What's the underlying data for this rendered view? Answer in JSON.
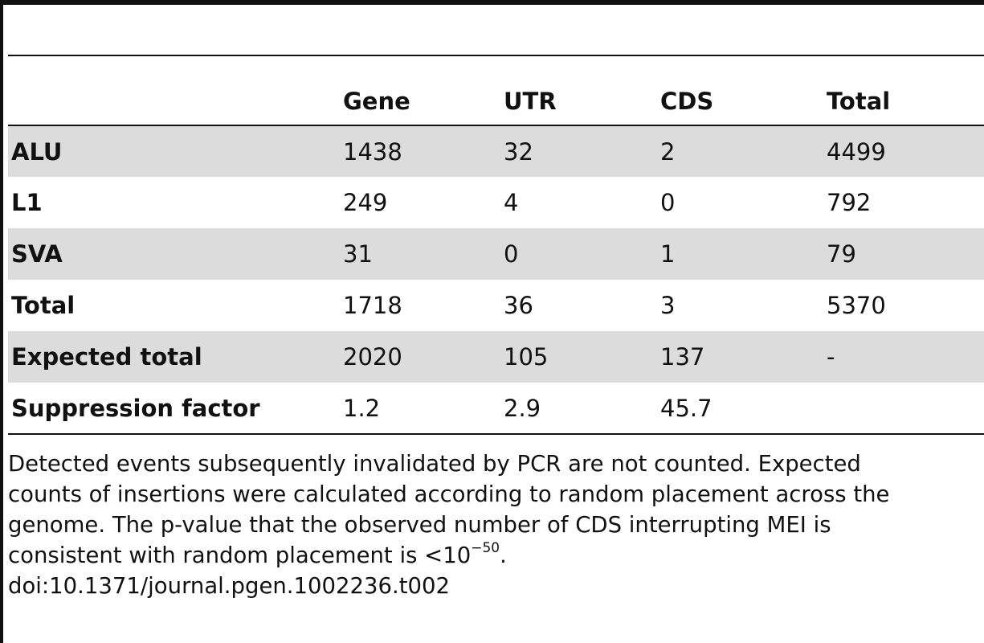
{
  "table": {
    "headers": [
      "",
      "Gene",
      "UTR",
      "CDS",
      "Total"
    ],
    "rows": [
      {
        "label": "ALU",
        "cells": [
          "1438",
          "32",
          "2",
          "4499"
        ]
      },
      {
        "label": "L1",
        "cells": [
          "249",
          "4",
          "0",
          "792"
        ]
      },
      {
        "label": "SVA",
        "cells": [
          "31",
          "0",
          "1",
          "79"
        ]
      },
      {
        "label": "Total",
        "cells": [
          "1718",
          "36",
          "3",
          "5370"
        ]
      },
      {
        "label": "Expected total",
        "cells": [
          "2020",
          "105",
          "137",
          "-"
        ]
      },
      {
        "label": "Suppression factor",
        "cells": [
          "1.2",
          "2.9",
          "45.7",
          ""
        ]
      }
    ]
  },
  "footnote": {
    "line1": "Detected events subsequently invalidated by PCR are not counted. Expected",
    "line2": "counts of insertions were calculated according to random placement across the",
    "line3": "genome. The p-value that the observed number of CDS interrupting MEI is",
    "line4_prefix": "consistent with random placement is <10",
    "line4_exponent": "−50",
    "line4_suffix": ".",
    "doi": "doi:10.1371/journal.pgen.1002236.t002"
  }
}
